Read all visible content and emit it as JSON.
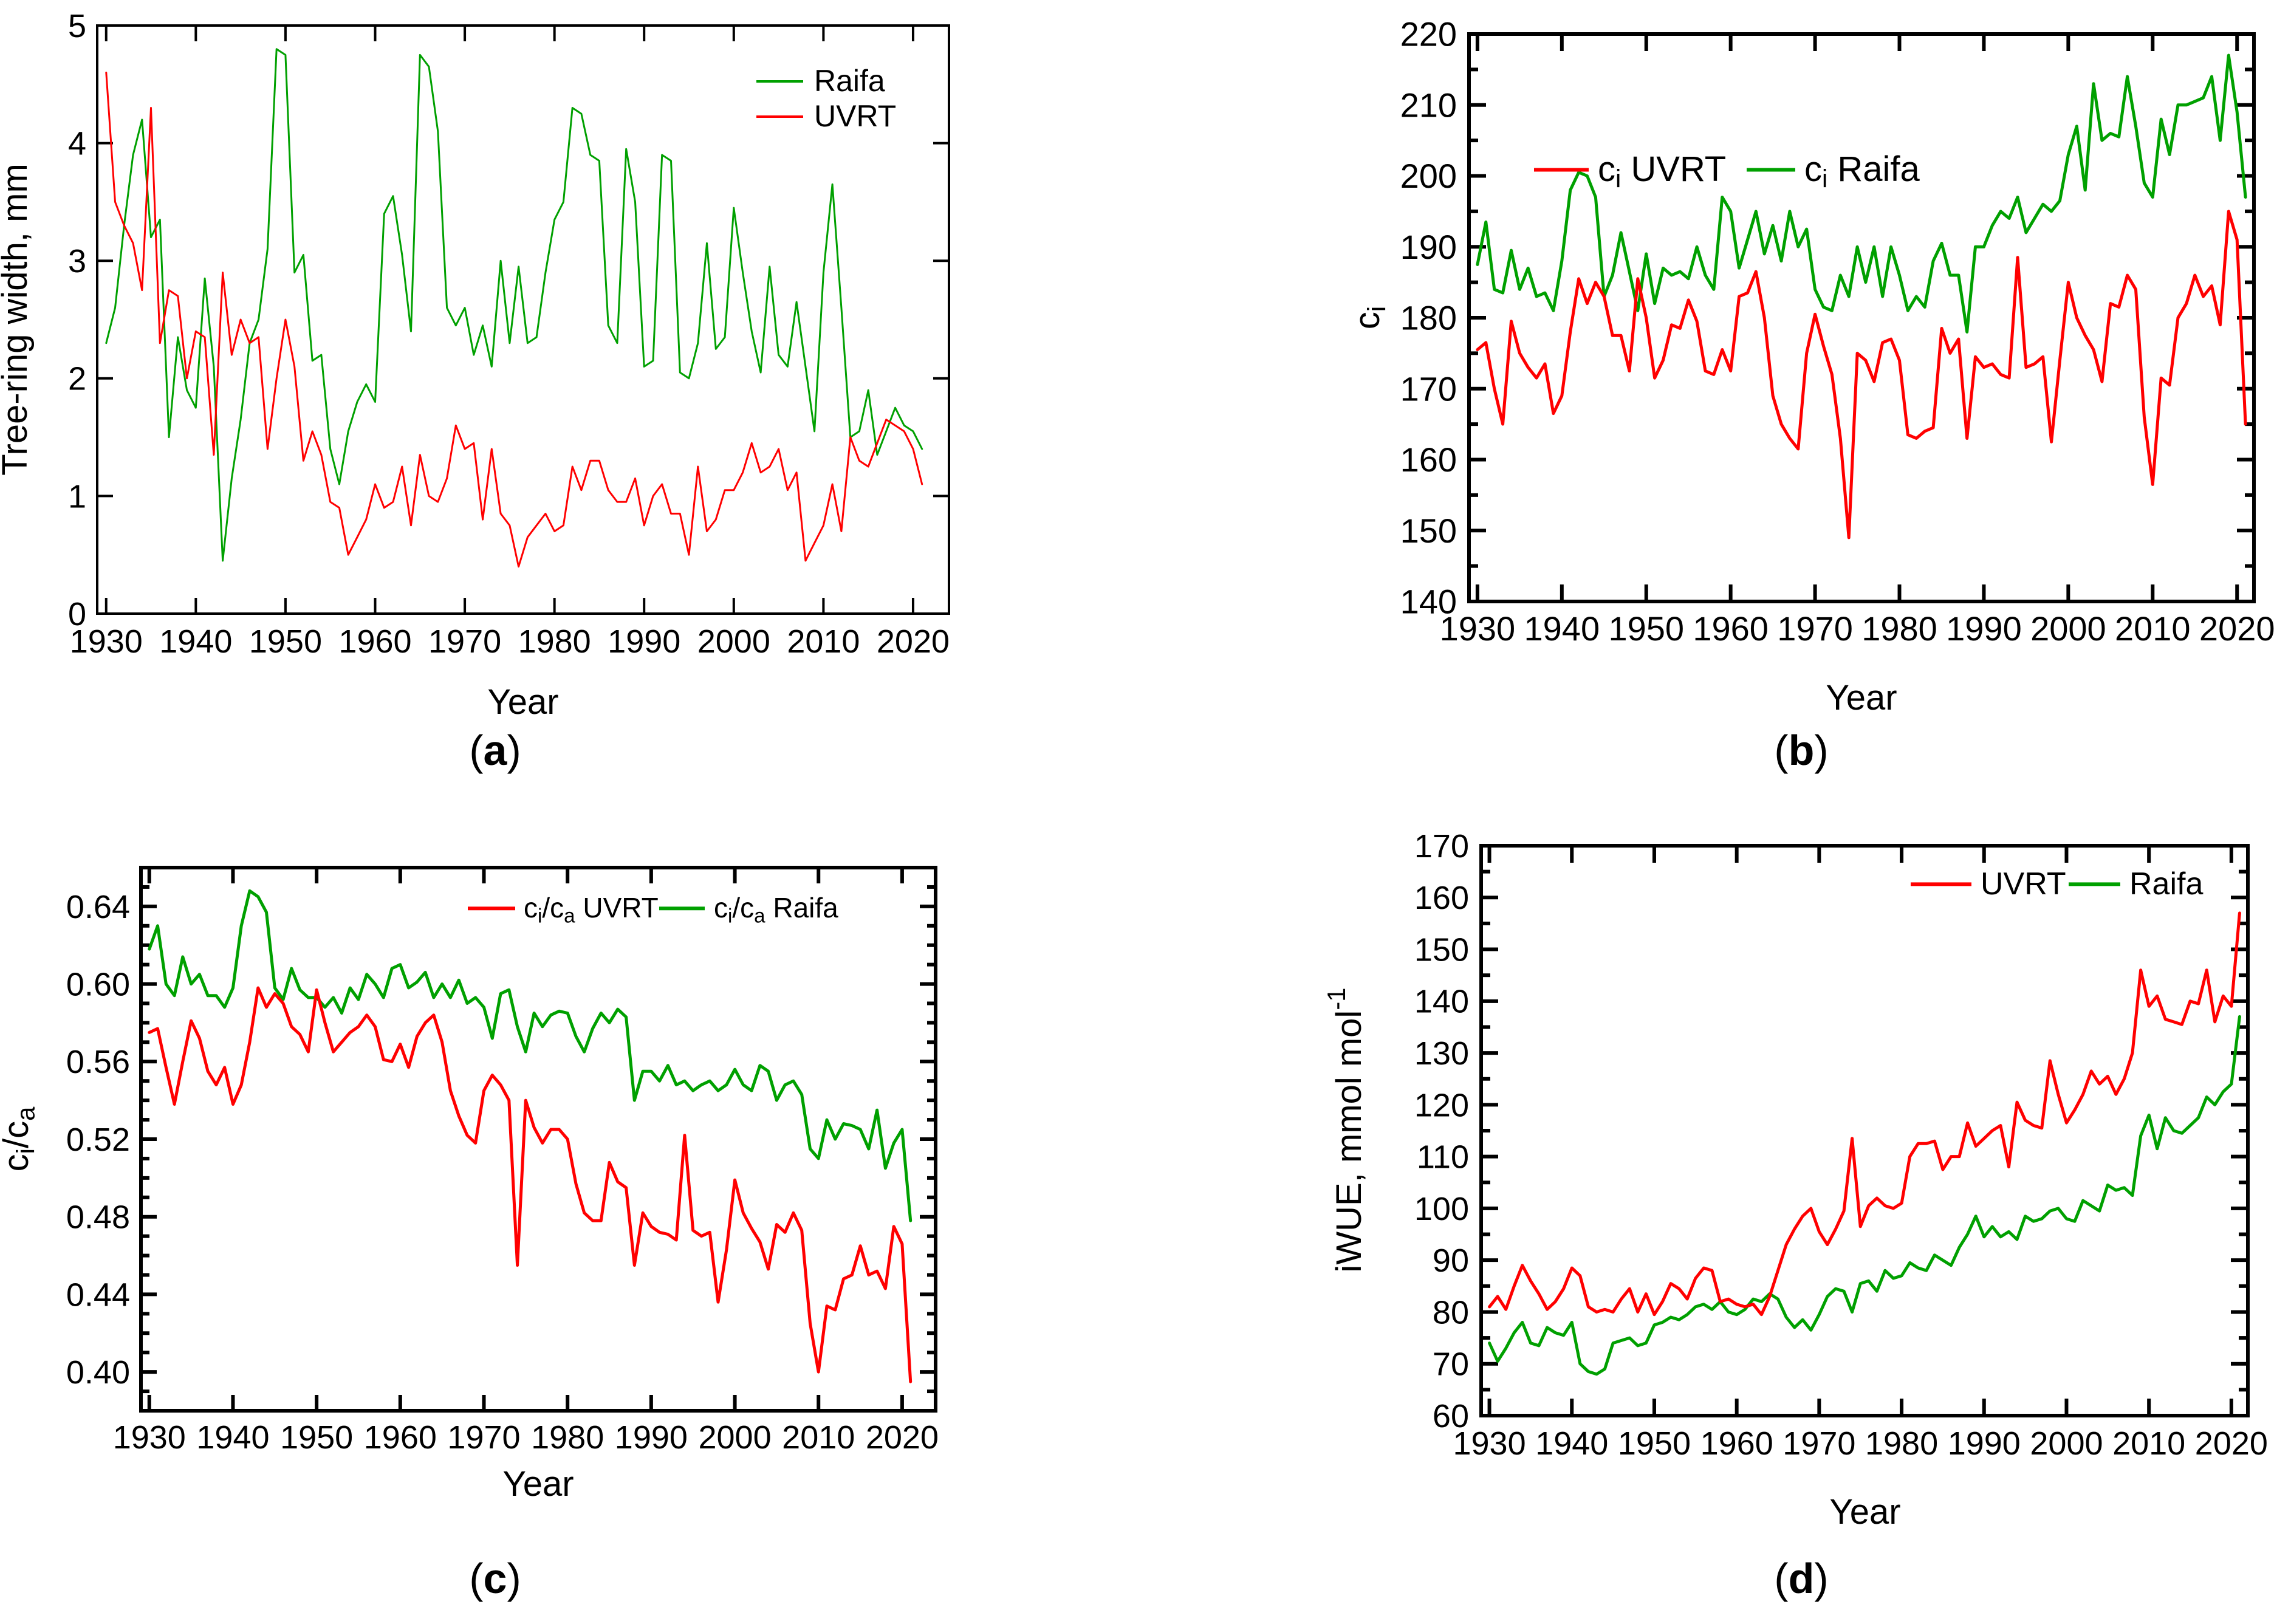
{
  "background": "#ffffff",
  "axis_color": "#000000",
  "chart_data": [
    {
      "id": "a",
      "caption": "(a)",
      "type": "line",
      "title": "",
      "xlabel": "Year",
      "ylabel": "Tree-ring width, mm",
      "xlim": [
        1929,
        2024
      ],
      "ylim": [
        0,
        5
      ],
      "x_ticks": [
        1930,
        1940,
        1950,
        1960,
        1970,
        1980,
        1990,
        2000,
        2010,
        2020
      ],
      "y_major_step": 1,
      "y_minor_step": 0,
      "y_decimals": 0,
      "x_start_year": 1930,
      "grid": false,
      "legend_position": "top-right-inside-vertical",
      "series": [
        {
          "name": "UVRT",
          "legend_label": "UVRT",
          "color": "#ff0000",
          "values": [
            4.6,
            3.5,
            3.3,
            3.15,
            2.75,
            4.3,
            2.3,
            2.75,
            2.7,
            2.0,
            2.4,
            2.35,
            1.35,
            2.9,
            2.2,
            2.5,
            2.3,
            2.35,
            1.4,
            2.0,
            2.5,
            2.1,
            1.3,
            1.55,
            1.35,
            0.95,
            0.9,
            0.5,
            0.65,
            0.8,
            1.1,
            0.9,
            0.95,
            1.25,
            0.75,
            1.35,
            1.0,
            0.95,
            1.15,
            1.6,
            1.4,
            1.45,
            0.8,
            1.4,
            0.85,
            0.75,
            0.4,
            0.65,
            0.75,
            0.85,
            0.7,
            0.75,
            1.25,
            1.05,
            1.3,
            1.3,
            1.05,
            0.95,
            0.95,
            1.15,
            0.75,
            1.0,
            1.1,
            0.85,
            0.85,
            0.5,
            1.25,
            0.7,
            0.8,
            1.05,
            1.05,
            1.2,
            1.45,
            1.2,
            1.25,
            1.4,
            1.05,
            1.2,
            0.45,
            0.6,
            0.75,
            1.1,
            0.7,
            1.5,
            1.3,
            1.25,
            1.45,
            1.65,
            1.6,
            1.55,
            1.4,
            1.1
          ]
        },
        {
          "name": "Raifa",
          "legend_label": "Raifa",
          "color": "#00a000",
          "values": [
            2.3,
            2.6,
            3.3,
            3.9,
            4.2,
            3.2,
            3.35,
            1.5,
            2.35,
            1.9,
            1.75,
            2.85,
            2.1,
            0.45,
            1.15,
            1.65,
            2.3,
            2.5,
            3.1,
            4.8,
            4.75,
            2.9,
            3.05,
            2.15,
            2.2,
            1.4,
            1.1,
            1.55,
            1.8,
            1.95,
            1.8,
            3.4,
            3.55,
            3.05,
            2.4,
            4.75,
            4.65,
            4.1,
            2.6,
            2.45,
            2.6,
            2.2,
            2.45,
            2.1,
            3.0,
            2.3,
            2.95,
            2.3,
            2.35,
            2.9,
            3.35,
            3.5,
            4.3,
            4.25,
            3.9,
            3.85,
            2.45,
            2.3,
            3.95,
            3.5,
            2.1,
            2.15,
            3.9,
            3.85,
            2.05,
            2.0,
            2.3,
            3.15,
            2.25,
            2.35,
            3.45,
            2.9,
            2.4,
            2.05,
            2.95,
            2.2,
            2.1,
            2.65,
            2.1,
            1.55,
            2.9,
            3.65,
            2.6,
            1.5,
            1.55,
            1.9,
            1.35,
            1.55,
            1.75,
            1.6,
            1.55,
            1.4
          ]
        }
      ]
    },
    {
      "id": "b",
      "caption": "(b)",
      "type": "line",
      "title": "",
      "xlabel": "Year",
      "ylabel": "c_{i}",
      "xlim": [
        1929,
        2022
      ],
      "ylim": [
        140,
        220
      ],
      "x_ticks": [
        1930,
        1940,
        1950,
        1960,
        1970,
        1980,
        1990,
        2000,
        2010,
        2020
      ],
      "y_major_step": 10,
      "y_minor_step": 5,
      "y_decimals": 0,
      "x_start_year": 1930,
      "grid": false,
      "legend_position": "top-center-inside-horizontal",
      "series": [
        {
          "name": "UVRT",
          "legend_label": "c_{i} UVRT",
          "color": "#ff0000",
          "values": [
            175.5,
            176.5,
            170,
            165,
            179.5,
            175,
            173,
            171.5,
            173.5,
            166.5,
            169,
            178,
            185.5,
            182,
            185,
            183,
            177.5,
            177.5,
            172.5,
            185.5,
            180,
            171.5,
            174,
            179,
            178.5,
            182.5,
            179.5,
            172.5,
            172,
            175.5,
            172.5,
            183,
            183.5,
            186.5,
            180,
            169,
            165,
            163,
            161.5,
            175,
            180.5,
            176,
            172,
            163,
            149,
            175,
            174,
            171,
            176.5,
            177,
            174,
            163.5,
            163,
            164,
            164.5,
            178.5,
            175,
            177,
            163,
            174.5,
            173,
            173.5,
            172,
            171.5,
            188.5,
            173,
            173.5,
            174.5,
            162.5,
            174,
            185,
            180,
            177.5,
            175.5,
            171,
            182,
            181.5,
            186,
            184,
            166,
            156.5,
            171.5,
            170.5,
            180,
            182,
            186,
            183,
            184.5,
            179,
            195,
            191,
            165
          ]
        },
        {
          "name": "Raifa",
          "legend_label": "c_{i} Raifa",
          "color": "#00a000",
          "values": [
            187.5,
            193.5,
            184,
            183.5,
            189.5,
            184,
            187,
            183,
            183.5,
            181,
            188,
            198,
            200.5,
            200,
            197,
            183,
            186,
            192,
            186.5,
            181,
            189,
            182,
            187,
            186,
            186.5,
            185.5,
            190,
            186,
            184,
            197,
            195,
            187,
            191,
            195,
            189,
            193,
            188,
            195,
            190,
            192.5,
            184,
            181.5,
            181,
            186,
            183,
            190,
            185,
            190,
            183,
            190,
            186,
            181,
            183,
            181.5,
            188,
            190.5,
            186,
            186,
            178,
            190,
            190,
            193,
            195,
            194,
            197,
            192,
            194,
            196,
            195,
            196.5,
            203,
            207,
            198,
            213,
            205,
            206,
            205.5,
            214,
            207,
            199,
            197,
            208,
            203,
            210,
            210,
            210.5,
            211,
            214,
            205,
            217,
            209,
            197
          ]
        }
      ]
    },
    {
      "id": "c",
      "caption": "(c)",
      "type": "line",
      "title": "",
      "xlabel": "Year",
      "ylabel": "c_{i}/c_{a}",
      "xlim": [
        1929,
        2024
      ],
      "ylim": [
        0.38,
        0.66
      ],
      "x_ticks": [
        1930,
        1940,
        1950,
        1960,
        1970,
        1980,
        1990,
        2000,
        2010,
        2020
      ],
      "y_major_step": 0.04,
      "y_minor_step": 0.01,
      "y_decimals": 2,
      "x_start_year": 1930,
      "grid": false,
      "legend_position": "top-right-inside-horizontal",
      "series": [
        {
          "name": "UVRT",
          "legend_label": "c_{i}/c_{a} UVRT",
          "color": "#ff0000",
          "values": [
            0.575,
            0.577,
            0.557,
            0.538,
            0.56,
            0.581,
            0.572,
            0.555,
            0.548,
            0.557,
            0.538,
            0.548,
            0.57,
            0.598,
            0.588,
            0.595,
            0.59,
            0.578,
            0.574,
            0.565,
            0.597,
            0.58,
            0.565,
            0.57,
            0.575,
            0.578,
            0.584,
            0.578,
            0.561,
            0.56,
            0.569,
            0.557,
            0.573,
            0.58,
            0.584,
            0.57,
            0.545,
            0.532,
            0.522,
            0.518,
            0.545,
            0.553,
            0.548,
            0.54,
            0.455,
            0.54,
            0.526,
            0.518,
            0.525,
            0.525,
            0.52,
            0.497,
            0.482,
            0.478,
            0.478,
            0.508,
            0.498,
            0.495,
            0.455,
            0.482,
            0.475,
            0.472,
            0.471,
            0.468,
            0.522,
            0.473,
            0.47,
            0.472,
            0.436,
            0.463,
            0.499,
            0.482,
            0.474,
            0.467,
            0.453,
            0.476,
            0.472,
            0.482,
            0.473,
            0.425,
            0.4,
            0.434,
            0.432,
            0.448,
            0.45,
            0.465,
            0.45,
            0.452,
            0.443,
            0.475,
            0.466,
            0.395
          ]
        },
        {
          "name": "Raifa",
          "legend_label": "c_{i}/c_{a} Raifa",
          "color": "#00a000",
          "values": [
            0.618,
            0.63,
            0.6,
            0.594,
            0.614,
            0.6,
            0.605,
            0.594,
            0.594,
            0.588,
            0.598,
            0.63,
            0.648,
            0.645,
            0.637,
            0.598,
            0.592,
            0.608,
            0.597,
            0.593,
            0.593,
            0.588,
            0.593,
            0.585,
            0.598,
            0.592,
            0.605,
            0.6,
            0.593,
            0.608,
            0.61,
            0.598,
            0.601,
            0.606,
            0.593,
            0.6,
            0.593,
            0.602,
            0.59,
            0.593,
            0.588,
            0.572,
            0.595,
            0.597,
            0.578,
            0.565,
            0.585,
            0.578,
            0.584,
            0.586,
            0.585,
            0.573,
            0.565,
            0.577,
            0.585,
            0.58,
            0.587,
            0.583,
            0.54,
            0.555,
            0.555,
            0.55,
            0.558,
            0.548,
            0.55,
            0.545,
            0.548,
            0.55,
            0.545,
            0.548,
            0.556,
            0.548,
            0.545,
            0.558,
            0.555,
            0.54,
            0.548,
            0.55,
            0.543,
            0.515,
            0.51,
            0.53,
            0.52,
            0.528,
            0.527,
            0.525,
            0.515,
            0.535,
            0.505,
            0.518,
            0.525,
            0.478
          ]
        }
      ]
    },
    {
      "id": "d",
      "caption": "(d)",
      "type": "line",
      "title": "",
      "xlabel": "Year",
      "ylabel": "iWUE, mmol mol^{-1}",
      "xlim": [
        1929,
        2022
      ],
      "ylim": [
        60,
        170
      ],
      "x_ticks": [
        1930,
        1940,
        1950,
        1960,
        1970,
        1980,
        1990,
        2000,
        2010,
        2020
      ],
      "y_major_step": 10,
      "y_minor_step": 5,
      "y_decimals": 0,
      "x_start_year": 1930,
      "grid": false,
      "legend_position": "top-right-inside-horizontal",
      "series": [
        {
          "name": "UVRT",
          "legend_label": "UVRT",
          "color": "#ff0000",
          "values": [
            81,
            83,
            80.5,
            85,
            89,
            86,
            83.5,
            80.5,
            82,
            84.5,
            88.5,
            87,
            81,
            80,
            80.5,
            80,
            82.5,
            84.5,
            80,
            83.5,
            79.5,
            82,
            85.5,
            84.5,
            82.5,
            86.5,
            88.5,
            88,
            82,
            82.5,
            81.5,
            81,
            81.5,
            79.5,
            83,
            88,
            93,
            96,
            98.5,
            100,
            95.5,
            93,
            96,
            99.5,
            113.5,
            96.5,
            100.5,
            102,
            100.5,
            100,
            101,
            110,
            112.5,
            112.5,
            113,
            107.5,
            110,
            110,
            116.5,
            112,
            113.5,
            115,
            116,
            108,
            120.5,
            117,
            116,
            115.5,
            128.5,
            122,
            116.5,
            119,
            122,
            126.5,
            124,
            125.5,
            122,
            125,
            130,
            146,
            139,
            141,
            136.5,
            136,
            135.5,
            140,
            139.5,
            146,
            136,
            141,
            139,
            157
          ]
        },
        {
          "name": "Raifa",
          "legend_label": "Raifa",
          "color": "#00a000",
          "values": [
            74,
            70.5,
            73,
            76,
            78,
            74,
            73.5,
            77,
            76,
            75.5,
            78,
            70,
            68.5,
            68,
            69,
            74,
            74.5,
            75,
            73.5,
            74,
            77.5,
            78,
            79,
            78.5,
            79.5,
            81,
            81.5,
            80.5,
            82,
            80,
            79.5,
            80.5,
            82.5,
            82,
            83.5,
            82.5,
            79,
            77,
            78.5,
            76.5,
            79.5,
            83,
            84.5,
            84,
            80,
            85.5,
            86,
            84,
            88,
            86.5,
            87,
            89.5,
            88.5,
            88,
            91,
            90,
            89,
            92.5,
            95,
            98.5,
            94.5,
            96.5,
            94.5,
            95.5,
            94,
            98.5,
            97.5,
            98,
            99.5,
            100,
            98,
            97.5,
            101.5,
            100.5,
            99.5,
            104.5,
            103.5,
            104,
            102.5,
            114,
            118,
            111.5,
            117.5,
            115,
            114.5,
            116,
            117.5,
            121.5,
            120,
            122.5,
            124,
            137
          ]
        }
      ]
    }
  ]
}
